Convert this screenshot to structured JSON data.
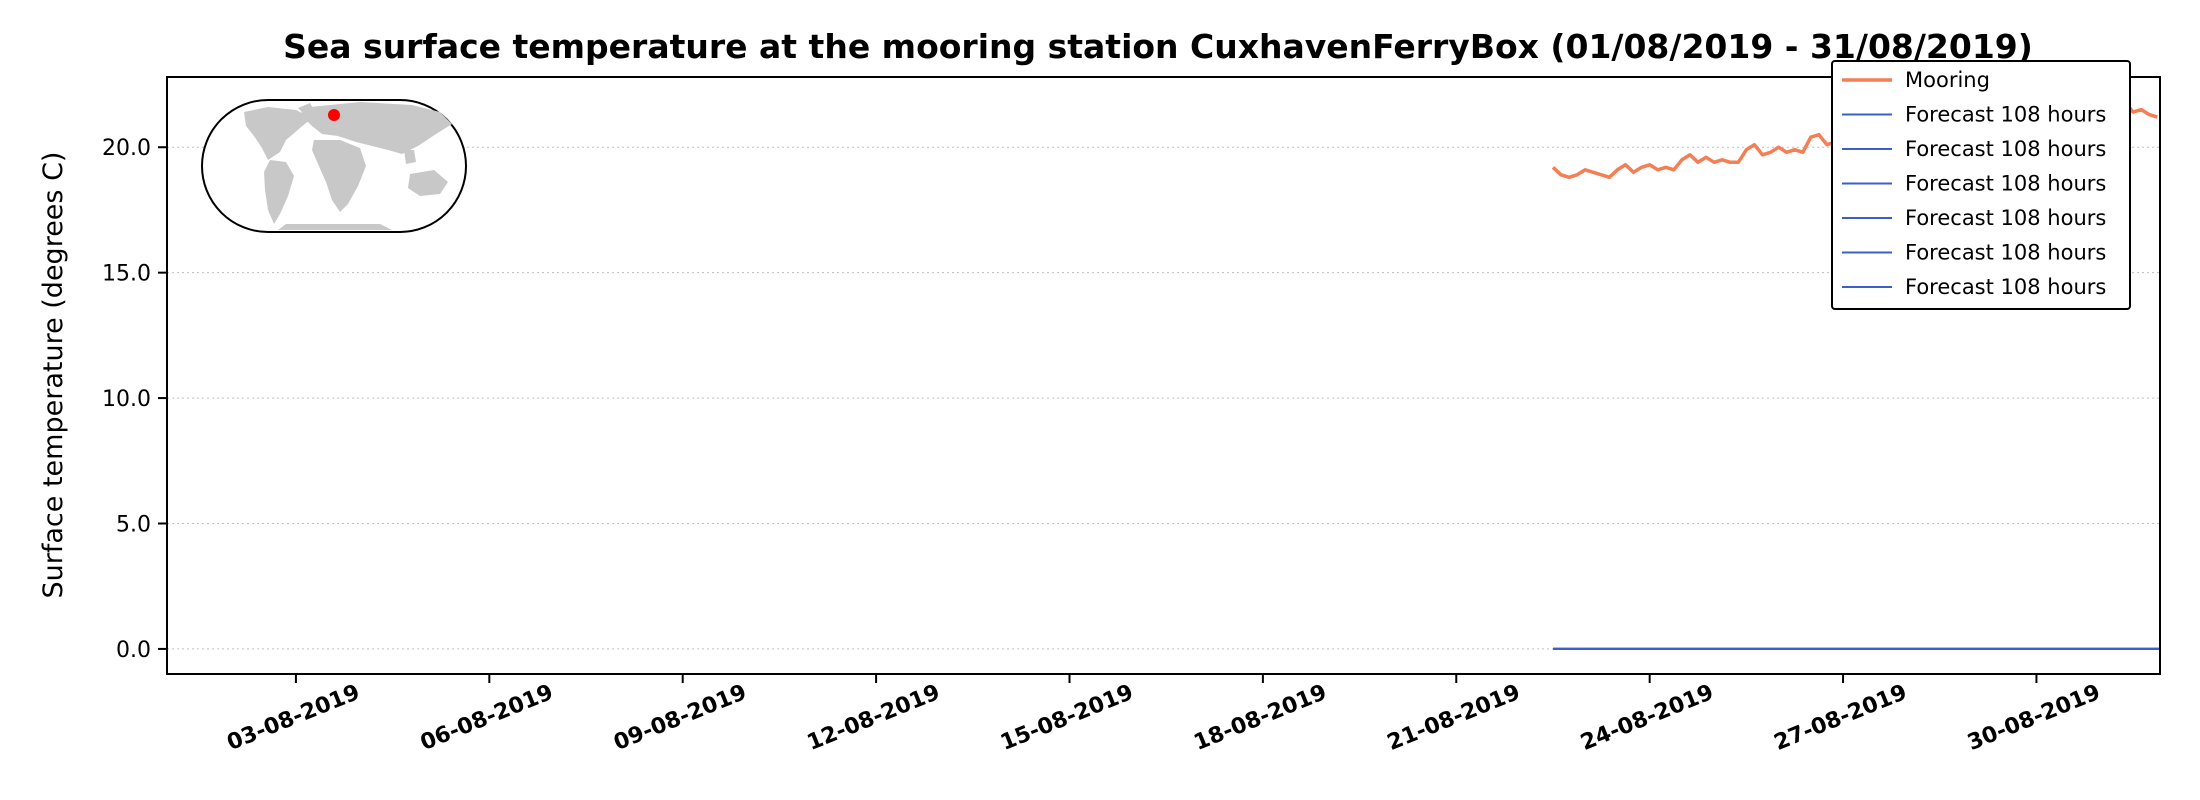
{
  "chart_data": {
    "type": "line",
    "title": "Sea surface temperature at the mooring station CuxhavenFerryBox (01/08/2019 - 31/08/2019)",
    "xlabel": "",
    "ylabel": "Surface temperature (degrees C)",
    "x_type": "date",
    "xlim": [
      "2019-08-01T00:00",
      "2019-08-31T22:00"
    ],
    "ylim": [
      -1.0,
      22.8
    ],
    "x_ticks": [
      "2019-08-03",
      "2019-08-06",
      "2019-08-09",
      "2019-08-12",
      "2019-08-15",
      "2019-08-18",
      "2019-08-21",
      "2019-08-24",
      "2019-08-27",
      "2019-08-30"
    ],
    "x_tick_labels": [
      "03-08-2019",
      "06-08-2019",
      "09-08-2019",
      "12-08-2019",
      "15-08-2019",
      "18-08-2019",
      "21-08-2019",
      "24-08-2019",
      "27-08-2019",
      "30-08-2019"
    ],
    "y_ticks": [
      0.0,
      5.0,
      10.0,
      15.0,
      20.0
    ],
    "y_tick_labels": [
      "0.0",
      "5.0",
      "10.0",
      "15.0",
      "20.0"
    ],
    "grid": "horizontal dotted",
    "legend_position": "top-right",
    "colors": {
      "mooring": "#f47f54",
      "forecast": "#3a5fcd",
      "map_marker": "#ff0000",
      "land": "#c8c8c8"
    },
    "series": [
      {
        "name": "Mooring",
        "kind": "mooring",
        "points": [
          [
            "2019-08-22T12:00",
            19.2
          ],
          [
            "2019-08-22T15:00",
            18.9
          ],
          [
            "2019-08-22T18:00",
            18.8
          ],
          [
            "2019-08-22T21:00",
            18.9
          ],
          [
            "2019-08-23T00:00",
            19.1
          ],
          [
            "2019-08-23T03:00",
            19.0
          ],
          [
            "2019-08-23T06:00",
            18.9
          ],
          [
            "2019-08-23T09:00",
            18.8
          ],
          [
            "2019-08-23T12:00",
            19.1
          ],
          [
            "2019-08-23T15:00",
            19.3
          ],
          [
            "2019-08-23T18:00",
            19.0
          ],
          [
            "2019-08-23T21:00",
            19.2
          ],
          [
            "2019-08-24T00:00",
            19.3
          ],
          [
            "2019-08-24T03:00",
            19.1
          ],
          [
            "2019-08-24T06:00",
            19.2
          ],
          [
            "2019-08-24T09:00",
            19.1
          ],
          [
            "2019-08-24T12:00",
            19.5
          ],
          [
            "2019-08-24T15:00",
            19.7
          ],
          [
            "2019-08-24T18:00",
            19.4
          ],
          [
            "2019-08-24T21:00",
            19.6
          ],
          [
            "2019-08-25T00:00",
            19.4
          ],
          [
            "2019-08-25T03:00",
            19.5
          ],
          [
            "2019-08-25T06:00",
            19.4
          ],
          [
            "2019-08-25T09:00",
            19.4
          ],
          [
            "2019-08-25T12:00",
            19.9
          ],
          [
            "2019-08-25T15:00",
            20.1
          ],
          [
            "2019-08-25T18:00",
            19.7
          ],
          [
            "2019-08-25T21:00",
            19.8
          ],
          [
            "2019-08-26T00:00",
            20.0
          ],
          [
            "2019-08-26T03:00",
            19.8
          ],
          [
            "2019-08-26T06:00",
            19.9
          ],
          [
            "2019-08-26T09:00",
            19.8
          ],
          [
            "2019-08-26T12:00",
            20.4
          ],
          [
            "2019-08-26T15:00",
            20.5
          ],
          [
            "2019-08-26T18:00",
            20.1
          ],
          [
            "2019-08-26T21:00",
            20.2
          ],
          [
            "2019-08-27T00:00",
            20.3
          ],
          [
            "2019-08-27T03:00",
            20.1
          ],
          [
            "2019-08-27T06:00",
            20.0
          ],
          [
            "2019-08-27T09:00",
            20.2
          ],
          [
            "2019-08-27T12:00",
            20.6
          ],
          [
            "2019-08-27T15:00",
            20.3
          ],
          [
            "2019-08-27T18:00",
            20.5
          ],
          [
            "2019-08-27T21:00",
            20.4
          ],
          [
            "2019-08-28T00:00",
            20.6
          ],
          [
            "2019-08-28T03:00",
            20.7
          ],
          [
            "2019-08-28T06:00",
            20.5
          ],
          [
            "2019-08-28T09:00",
            20.8
          ],
          [
            "2019-08-28T12:00",
            20.9
          ],
          [
            "2019-08-28T15:00",
            20.7
          ],
          [
            "2019-08-28T18:00",
            21.0
          ],
          [
            "2019-08-28T21:00",
            21.1
          ],
          [
            "2019-08-29T00:00",
            20.9
          ],
          [
            "2019-08-29T03:00",
            21.2
          ],
          [
            "2019-08-29T06:00",
            21.1
          ],
          [
            "2019-08-29T09:00",
            21.3
          ],
          [
            "2019-08-29T12:00",
            21.5
          ],
          [
            "2019-08-29T15:00",
            21.3
          ],
          [
            "2019-08-29T18:00",
            21.4
          ],
          [
            "2019-08-29T21:00",
            21.2
          ],
          [
            "2019-08-30T00:00",
            21.3
          ],
          [
            "2019-08-30T03:00",
            21.4
          ],
          [
            "2019-08-30T06:00",
            21.2
          ],
          [
            "2019-08-30T09:00",
            21.5
          ],
          [
            "2019-08-30T12:00",
            21.3
          ],
          [
            "2019-08-30T15:00",
            21.4
          ],
          [
            "2019-08-30T18:00",
            21.5
          ],
          [
            "2019-08-30T21:00",
            21.3
          ],
          [
            "2019-08-31T00:00",
            21.4
          ],
          [
            "2019-08-31T03:00",
            21.5
          ],
          [
            "2019-08-31T06:00",
            21.6
          ],
          [
            "2019-08-31T09:00",
            21.8
          ],
          [
            "2019-08-31T12:00",
            21.4
          ],
          [
            "2019-08-31T15:00",
            21.5
          ],
          [
            "2019-08-31T18:00",
            21.3
          ],
          [
            "2019-08-31T21:00",
            21.2
          ]
        ]
      },
      {
        "name": "Forecast 108 hours",
        "kind": "forecast",
        "points": [
          [
            "2019-08-22T12:00",
            0.0
          ],
          [
            "2019-08-31T22:00",
            0.0
          ]
        ]
      },
      {
        "name": "Forecast 108 hours",
        "kind": "forecast",
        "points": [
          [
            "2019-08-22T12:00",
            0.0
          ],
          [
            "2019-08-31T22:00",
            0.0
          ]
        ]
      },
      {
        "name": "Forecast 108 hours",
        "kind": "forecast",
        "points": [
          [
            "2019-08-22T12:00",
            0.0
          ],
          [
            "2019-08-31T22:00",
            0.0
          ]
        ]
      },
      {
        "name": "Forecast 108 hours",
        "kind": "forecast",
        "points": [
          [
            "2019-08-22T12:00",
            0.0
          ],
          [
            "2019-08-31T22:00",
            0.0
          ]
        ]
      },
      {
        "name": "Forecast 108 hours",
        "kind": "forecast",
        "points": [
          [
            "2019-08-22T12:00",
            0.0
          ],
          [
            "2019-08-31T22:00",
            0.0
          ]
        ]
      },
      {
        "name": "Forecast 108 hours",
        "kind": "forecast",
        "points": [
          [
            "2019-08-22T12:00",
            0.0
          ],
          [
            "2019-08-31T22:00",
            0.0
          ]
        ]
      }
    ],
    "inset_map": {
      "type": "world-locator",
      "marker_lon": 8.7,
      "marker_lat": 53.9
    }
  }
}
